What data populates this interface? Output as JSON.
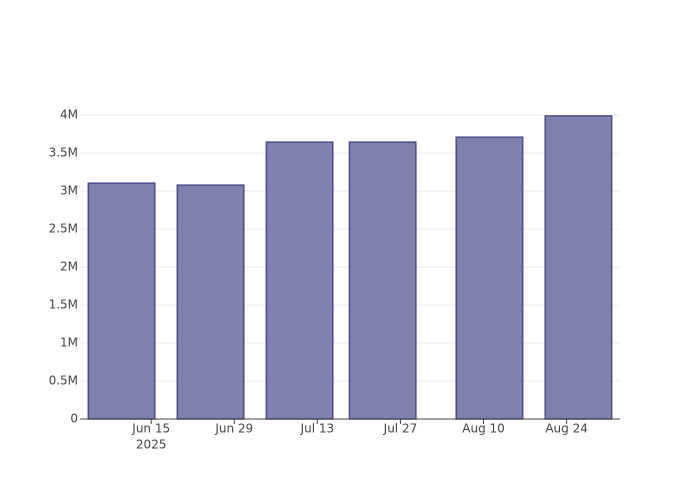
{
  "chart_data": {
    "type": "bar",
    "x": [
      "2025-06-10",
      "2025-06-25",
      "2025-07-10",
      "2025-07-24",
      "2025-08-11",
      "2025-08-26"
    ],
    "values": [
      3105000,
      3079000,
      3645000,
      3645000,
      3710000,
      3990000
    ],
    "color": "#7f7fb0",
    "line_color": "#4b4b88",
    "xlim": [
      "2025-06-03",
      "2025-09-02"
    ],
    "xticks": [
      {
        "value": "2025-06-15",
        "label": "Jun 15",
        "sublabel": "2025"
      },
      {
        "value": "2025-06-29",
        "label": "Jun 29"
      },
      {
        "value": "2025-07-13",
        "label": "Jul 13"
      },
      {
        "value": "2025-07-27",
        "label": "Jul 27"
      },
      {
        "value": "2025-08-10",
        "label": "Aug 10"
      },
      {
        "value": "2025-08-24",
        "label": "Aug 24"
      }
    ],
    "ylim": [
      0,
      4200000
    ],
    "yticks": [
      0,
      {
        "value": 500000,
        "label": "0.5M"
      },
      {
        "value": 1000000,
        "label": "1M"
      },
      {
        "value": 1500000,
        "label": "1.5M"
      },
      {
        "value": 2000000,
        "label": "2M"
      },
      {
        "value": 2500000,
        "label": "2.5M"
      },
      {
        "value": 3000000,
        "label": "3M"
      },
      {
        "value": 3500000,
        "label": "3.5M"
      },
      {
        "value": 4000000,
        "label": "4M"
      }
    ],
    "grid": true
  }
}
